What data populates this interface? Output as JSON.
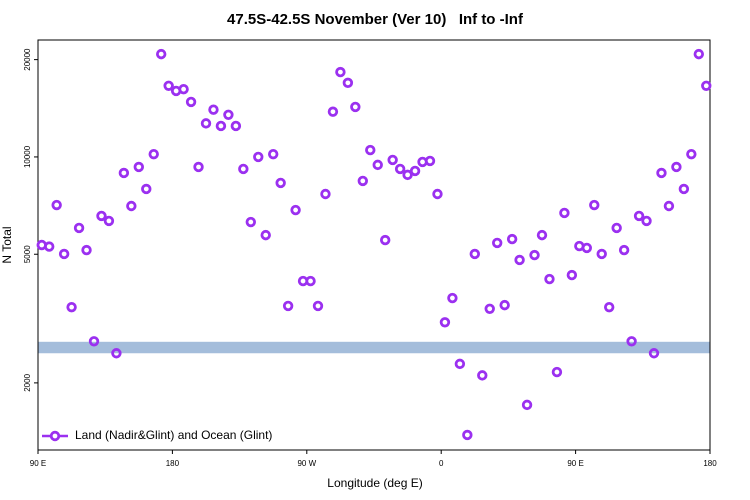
{
  "chart_data": {
    "type": "scatter",
    "title": "47.5S-42.5S November (Ver 10)   Inf to -Inf",
    "xlabel": "Longitude (deg E)",
    "ylabel": "N Total",
    "log_y": true,
    "legend": "bottom-left",
    "xlim": [
      90,
      540
    ],
    "xticks": [
      {
        "value": 90,
        "label": "90 E"
      },
      180,
      {
        "value": 270,
        "label": "90 W"
      },
      {
        "value": 360,
        "label": "0"
      },
      {
        "value": 450,
        "label": "90 E"
      },
      {
        "value": 540,
        "label": "180"
      }
    ],
    "ylim": [
      1240,
      23000
    ],
    "yticks": [
      2000,
      5000,
      10000,
      20000
    ],
    "band": [
      2470,
      2680
    ],
    "band_color": "#a4bddb",
    "series": [
      {
        "name": "Land (Nadir&Glint) and Ocean (Glint)",
        "color": "#9b30f0",
        "x": [
          92.5,
          97.5,
          102.5,
          107.5,
          112.5,
          117.5,
          122.5,
          127.5,
          132.5,
          137.5,
          142.5,
          147.5,
          152.5,
          157.5,
          162.5,
          167.5,
          172.5,
          177.5,
          182.5,
          187.5,
          192.5,
          197.5,
          202.5,
          207.5,
          212.5,
          217.5,
          222.5,
          227.5,
          232.5,
          237.5,
          242.5,
          247.5,
          252.5,
          257.5,
          262.5,
          267.5,
          272.5,
          277.5,
          282.5,
          287.5,
          292.5,
          297.5,
          302.5,
          307.5,
          312.5,
          317.5,
          322.5,
          327.5,
          332.5,
          337.5,
          342.5,
          347.5,
          352.5,
          357.5,
          362.5,
          367.5,
          372.5,
          377.5,
          382.5,
          387.5,
          392.5,
          397.5,
          402.5,
          407.5,
          412.5,
          417.5,
          422.5,
          427.5,
          432.5,
          437.5,
          442.5,
          447.5,
          452.5,
          457.5,
          462.5,
          467.5,
          472.5,
          477.5,
          482.5,
          487.5,
          492.5,
          497.5,
          502.5,
          507.5,
          512.5,
          517.5,
          522.5,
          527.5,
          532.5,
          537.5
        ],
        "values": [
          5340,
          5280,
          7100,
          5010,
          3430,
          6030,
          5150,
          2690,
          6570,
          6340,
          2470,
          8920,
          7050,
          9310,
          7960,
          10200,
          20800,
          16600,
          16000,
          16200,
          14800,
          9310,
          12700,
          14000,
          12470,
          13500,
          12470,
          9180,
          6290,
          10000,
          5730,
          10200,
          8310,
          3460,
          6850,
          4130,
          4130,
          3460,
          7680,
          13800,
          18300,
          16950,
          14280,
          8430,
          10500,
          9450,
          5530,
          9790,
          9180,
          8800,
          9050,
          9650,
          9720,
          7680,
          3080,
          3660,
          2290,
          1380,
          5010,
          2110,
          3390,
          5420,
          3480,
          5570,
          4800,
          1710,
          4970,
          5730,
          4190,
          2160,
          6710,
          4310,
          5300,
          5230,
          7100,
          5010,
          3430,
          6030,
          5150,
          2690,
          6570,
          6340,
          2470,
          8920,
          7050,
          9310,
          7960,
          10200,
          20800,
          16600
        ]
      }
    ]
  }
}
